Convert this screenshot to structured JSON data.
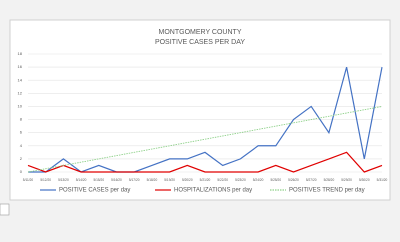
{
  "chart_data": {
    "type": "line",
    "title": "MONTGOMERY COUNTY",
    "subtitle": "POSITIVE CASES PER DAY",
    "categories": [
      "5/11/20",
      "5/12/20",
      "5/13/20",
      "5/14/20",
      "5/15/20",
      "5/16/20",
      "5/17/20",
      "5/18/20",
      "5/19/20",
      "5/20/20",
      "5/21/20",
      "5/22/20",
      "5/23/20",
      "5/24/20",
      "5/25/20",
      "5/26/20",
      "5/27/20",
      "5/28/20",
      "5/29/20",
      "5/30/20",
      "5/31/20"
    ],
    "series": [
      {
        "name": "POSITIVE CASES per day",
        "color": "#4472c4",
        "style": "solid",
        "values": [
          0,
          0,
          2,
          0,
          1,
          0,
          0,
          1,
          2,
          2,
          3,
          1,
          2,
          4,
          4,
          8,
          10,
          6,
          16,
          2,
          16
        ]
      },
      {
        "name": "HOSPITALIZATIONS per day",
        "color": "#e00000",
        "style": "solid",
        "values": [
          1,
          0,
          1,
          0,
          0,
          0,
          0,
          0,
          0,
          1,
          0,
          0,
          0,
          0,
          1,
          0,
          1,
          2,
          3,
          0,
          1
        ]
      },
      {
        "name": "POSITIVES TREND per day",
        "color": "#8fd18a",
        "style": "dotted",
        "values": [
          0,
          0.5,
          1,
          1.5,
          2,
          2.5,
          3,
          3.5,
          4,
          4.5,
          5,
          5.5,
          6,
          6.5,
          7,
          7.5,
          8,
          8.5,
          9,
          9.5,
          10
        ]
      }
    ],
    "ylim": [
      0,
      18
    ],
    "yticks": [
      0,
      2,
      4,
      6,
      8,
      10,
      12,
      14,
      16,
      18
    ],
    "grid": true,
    "legend": "bottom"
  }
}
